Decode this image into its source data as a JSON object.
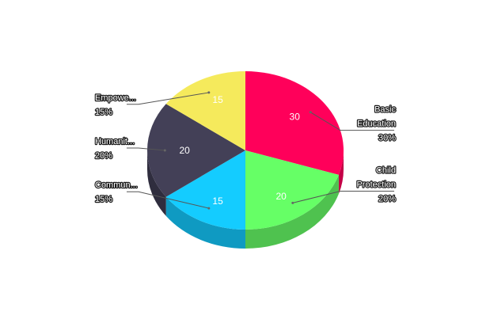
{
  "chart_data": {
    "type": "pie",
    "title": "",
    "slices": [
      {
        "label": "Basic Education",
        "label_lines": [
          "Basic",
          "Education"
        ],
        "value": 30,
        "percent": "30%",
        "color": "#ff005a",
        "side_color": "#c40046"
      },
      {
        "label": "Child Protection",
        "label_lines": [
          "Child",
          "Protection"
        ],
        "value": 20,
        "percent": "20%",
        "color": "#66ff66",
        "side_color": "#4fc24f"
      },
      {
        "label": "Commun...",
        "label_lines": [
          "Commun..."
        ],
        "value": 15,
        "percent": "15%",
        "color": "#14ccff",
        "side_color": "#0f9ac2"
      },
      {
        "label": "Humanit...",
        "label_lines": [
          "Humanit..."
        ],
        "value": 20,
        "percent": "20%",
        "color": "#434057",
        "side_color": "#2f2d3e"
      },
      {
        "label": "Empowe...",
        "label_lines": [
          "Empowe..."
        ],
        "value": 15,
        "percent": "15%",
        "color": "#f5ea5c",
        "side_color": "#c4bb49"
      }
    ],
    "legend": "none",
    "three_d": true
  }
}
